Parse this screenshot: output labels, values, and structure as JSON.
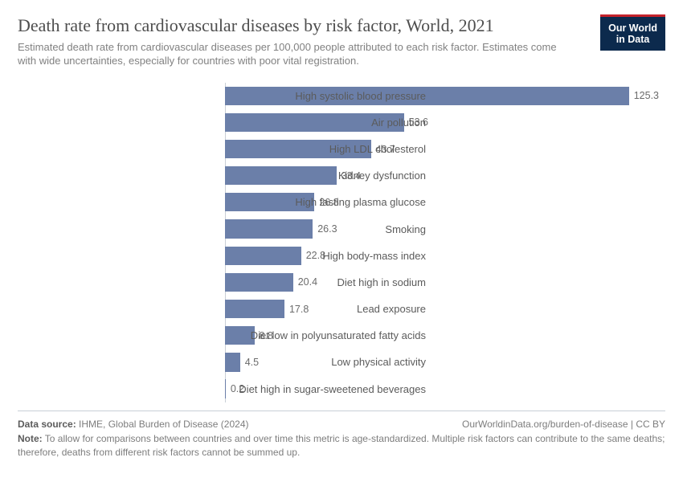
{
  "logo": {
    "line1": "Our World",
    "line2": "in Data",
    "bg": "#0c2a4d",
    "accent": "#c4222b"
  },
  "title": "Death rate from cardiovascular diseases by risk factor, World, 2021",
  "subtitle": "Estimated death rate from cardiovascular diseases per 100,000 people attributed to each risk factor. Estimates come with wide uncertainties, especially for countries with poor vital registration.",
  "chart": {
    "type": "bar-horizontal",
    "xlim": [
      0,
      130
    ],
    "bar_color": "#6b7fa9",
    "axis_color": "#c9cfd6",
    "label_fontsize": 13,
    "value_fontsize": 12.5,
    "label_color": "#5b5b5b",
    "value_color": "#6b6b6b",
    "background_color": "#ffffff",
    "bar_fill_ratio": 0.7,
    "risks": [
      {
        "label": "High systolic blood pressure",
        "value": 125.3
      },
      {
        "label": "Air pollution",
        "value": 53.6
      },
      {
        "label": "High LDL cholesterol",
        "value": 43.7
      },
      {
        "label": "Kidney dysfunction",
        "value": 33.4
      },
      {
        "label": "High fasting plasma glucose",
        "value": 26.8
      },
      {
        "label": "Smoking",
        "value": 26.3
      },
      {
        "label": "High body-mass index",
        "value": 22.8
      },
      {
        "label": "Diet high in sodium",
        "value": 20.4
      },
      {
        "label": "Lead exposure",
        "value": 17.8
      },
      {
        "label": "Diet low in polyunsaturated fatty acids",
        "value": 8.8
      },
      {
        "label": "Low physical activity",
        "value": 4.5
      },
      {
        "label": "Diet high in sugar-sweetened beverages",
        "value": 0.2
      }
    ]
  },
  "footer": {
    "source_label": "Data source:",
    "source_value": "IHME, Global Burden of Disease (2024)",
    "attribution": "OurWorldinData.org/burden-of-disease | CC BY",
    "note_label": "Note:",
    "note_text": "To allow for comparisons between countries and over time this metric is age-standardized. Multiple risk factors can contribute to the same deaths; therefore, deaths from different risk factors cannot be summed up."
  }
}
